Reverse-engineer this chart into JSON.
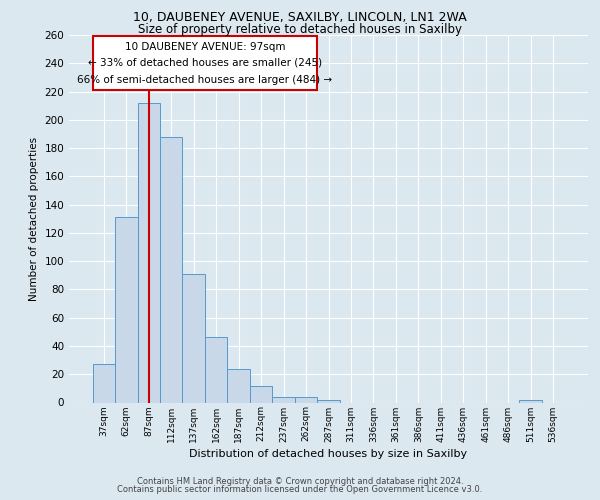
{
  "title_line1": "10, DAUBENEY AVENUE, SAXILBY, LINCOLN, LN1 2WA",
  "title_line2": "Size of property relative to detached houses in Saxilby",
  "xlabel": "Distribution of detached houses by size in Saxilby",
  "ylabel": "Number of detached properties",
  "footnote1": "Contains HM Land Registry data © Crown copyright and database right 2024.",
  "footnote2": "Contains public sector information licensed under the Open Government Licence v3.0.",
  "bar_labels": [
    "37sqm",
    "62sqm",
    "87sqm",
    "112sqm",
    "137sqm",
    "162sqm",
    "187sqm",
    "212sqm",
    "237sqm",
    "262sqm",
    "287sqm",
    "311sqm",
    "336sqm",
    "361sqm",
    "386sqm",
    "411sqm",
    "436sqm",
    "461sqm",
    "486sqm",
    "511sqm",
    "536sqm"
  ],
  "bar_values": [
    27,
    131,
    212,
    188,
    91,
    46,
    24,
    12,
    4,
    4,
    2,
    0,
    0,
    0,
    0,
    0,
    0,
    0,
    0,
    2,
    0
  ],
  "bar_color": "#c8d8e8",
  "bar_edge_color": "#5599cc",
  "ylim": [
    0,
    260
  ],
  "yticks": [
    0,
    20,
    40,
    60,
    80,
    100,
    120,
    140,
    160,
    180,
    200,
    220,
    240,
    260
  ],
  "property_line_x": 2.0,
  "property_line_color": "#cc0000",
  "annotation_title": "10 DAUBENEY AVENUE: 97sqm",
  "annotation_line1": "← 33% of detached houses are smaller (245)",
  "annotation_line2": "66% of semi-detached houses are larger (484) →",
  "annotation_box_color": "#ffffff",
  "annotation_box_edge": "#cc0000",
  "background_color": "#dce8f0",
  "grid_color": "#ffffff"
}
